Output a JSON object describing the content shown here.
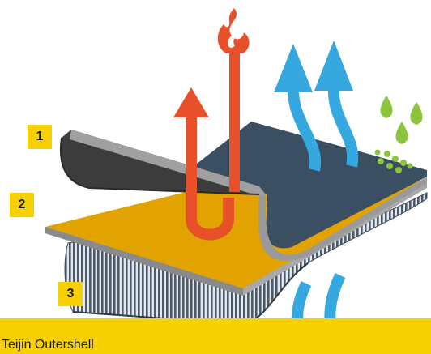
{
  "labels": {
    "layer_1": "1",
    "layer_2": "2",
    "layer_3": "3"
  },
  "caption": "Teijin Outershell",
  "colors": {
    "accent_yellow": "#f6d000",
    "outer_shell": "#3a4f62",
    "outer_shell_inner": "#3c3c3c",
    "membrane": "#e2a300",
    "liner_stripes": "#4a5a6a",
    "heat_arrow": "#e8502a",
    "vapor_arrow": "#35a8e0",
    "water_drops": "#8cc43c"
  },
  "icons": [
    "flame-icon",
    "heat-arrow-icon",
    "vapor-arrow-icon",
    "water-drop-icon"
  ]
}
